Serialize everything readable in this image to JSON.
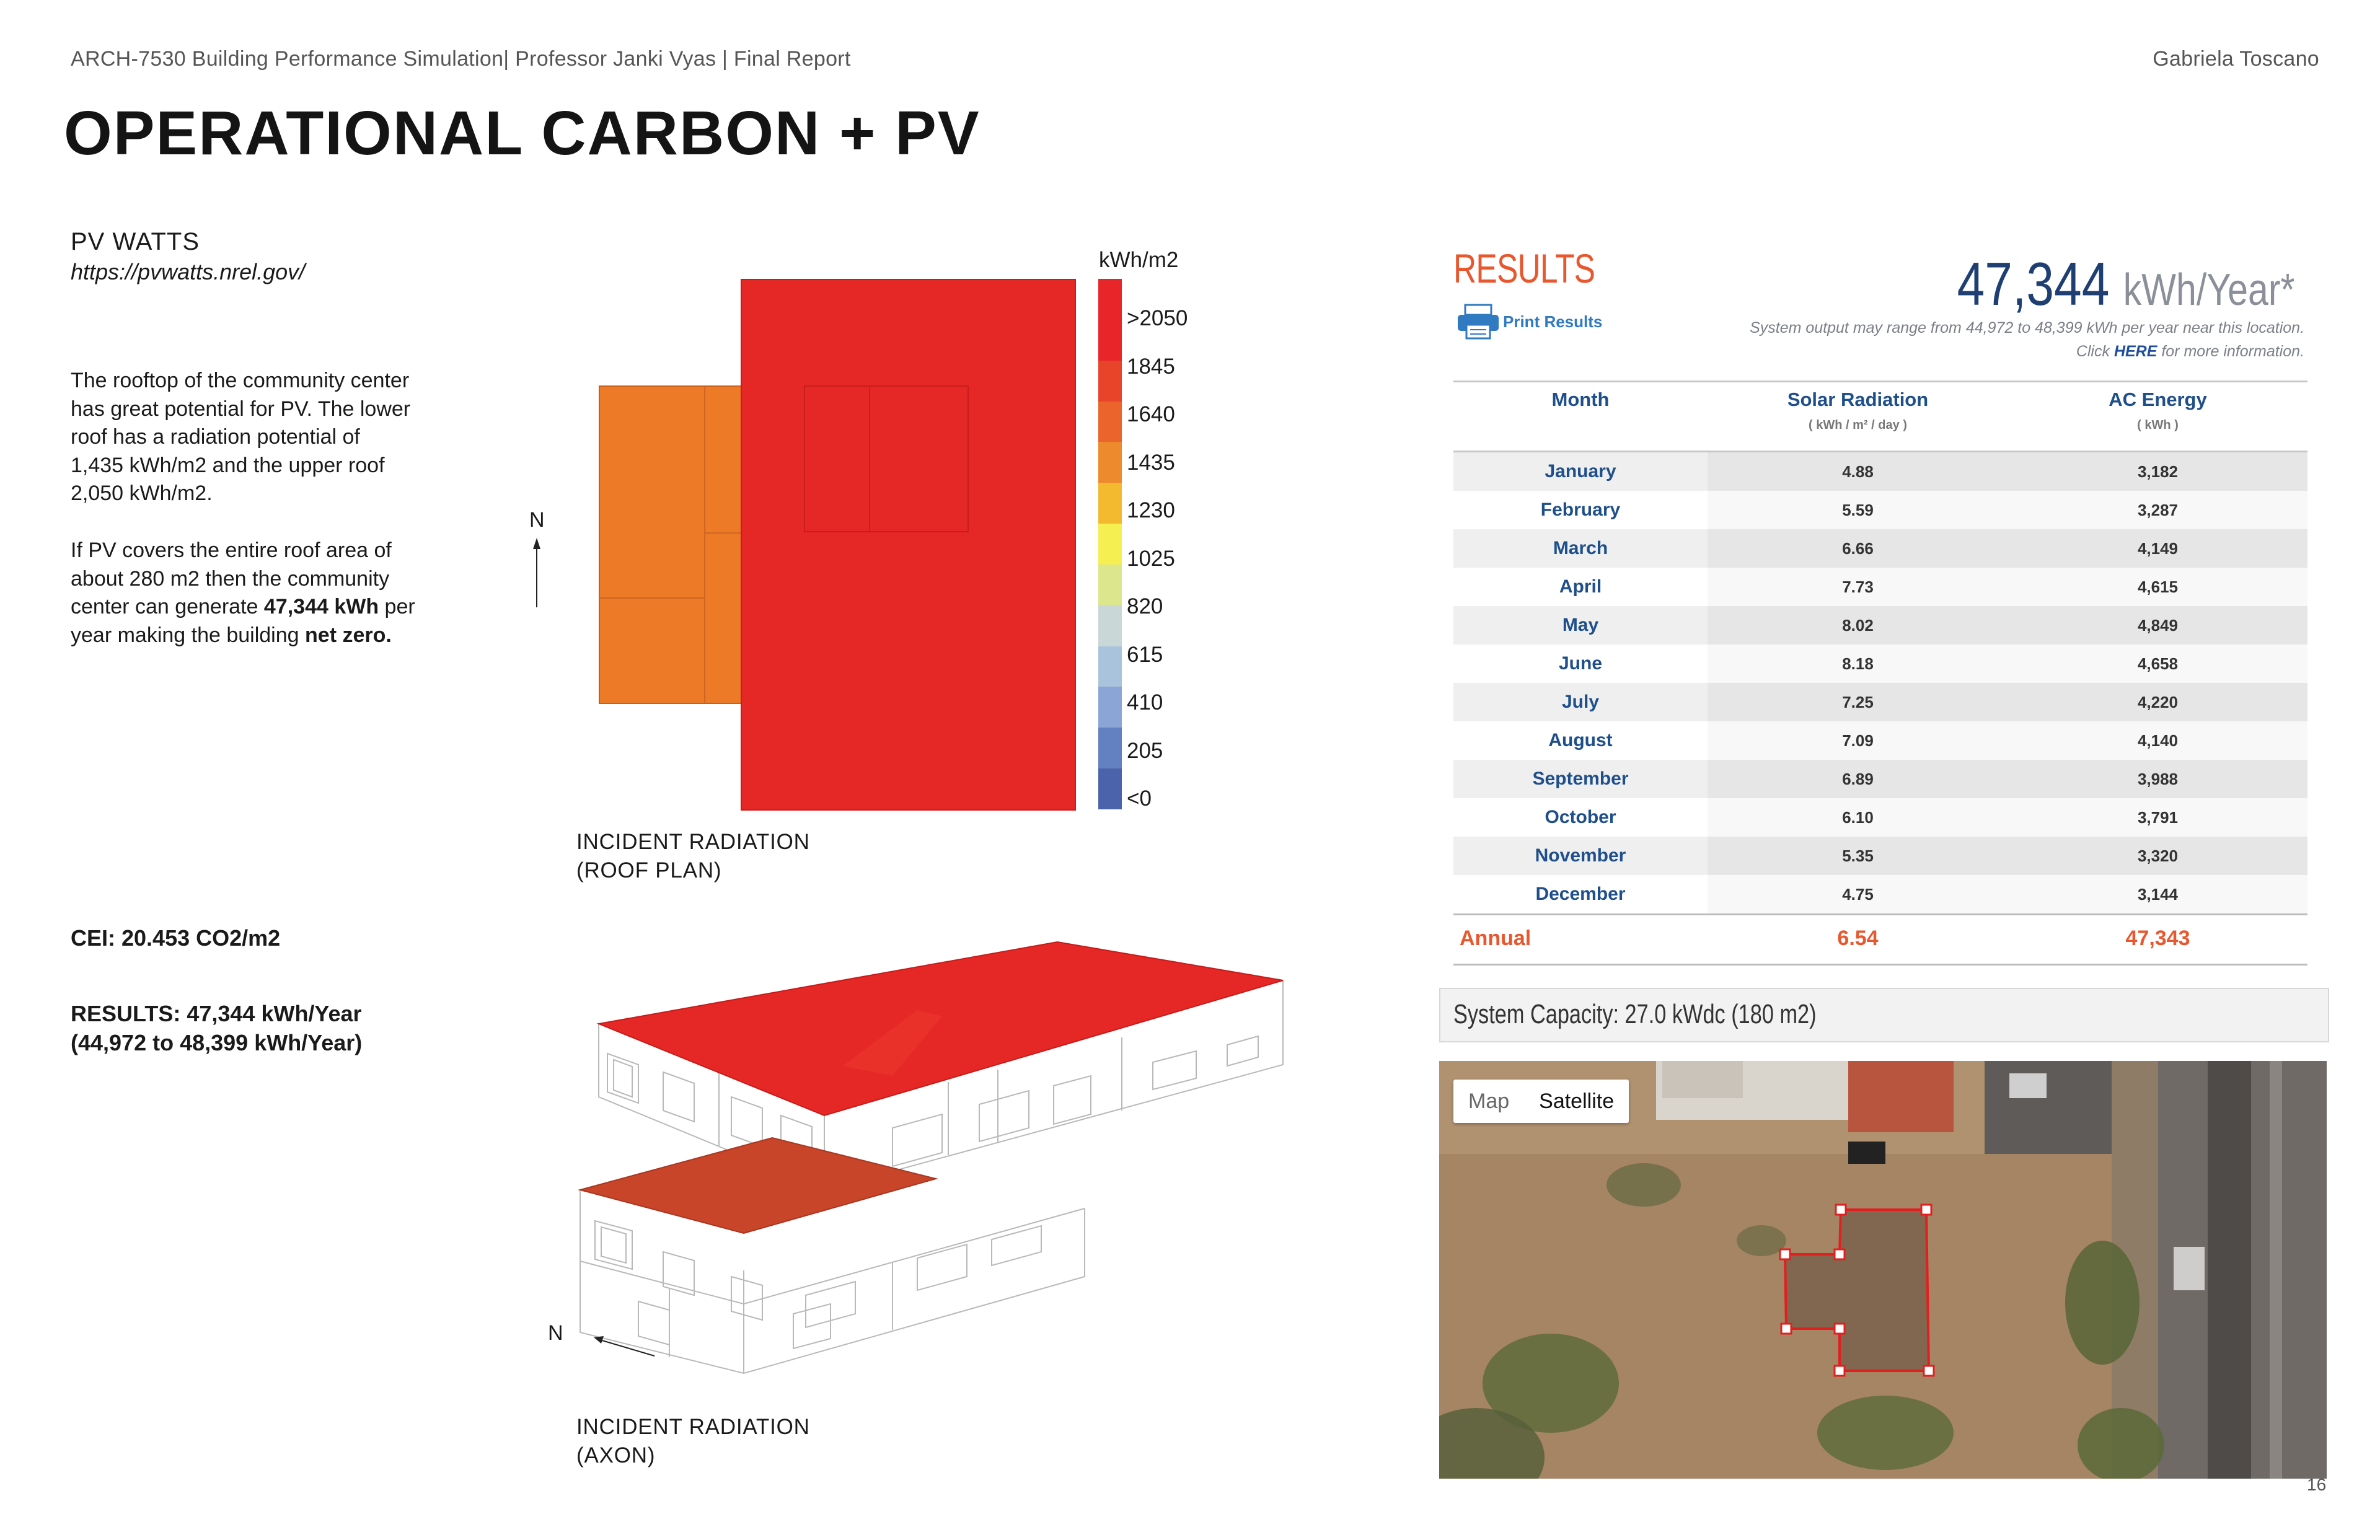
{
  "header": {
    "course": "ARCH-7530 Building Performance Simulation| Professor Janki Vyas | Final Report",
    "author": "Gabriela Toscano"
  },
  "title": "OPERATIONAL CARBON + PV",
  "intro": {
    "heading": "PV WATTS",
    "url": "https://pvwatts.nrel.gov/",
    "p1": "The rooftop of the community center has great potential for PV. The lower roof has a radiation potential of 1,435 kWh/m2 and the upper roof 2,050 kWh/m2.",
    "p2_a": "If PV covers the entire roof area of about 280 m2 then the community center can generate ",
    "p2_b": "47,344 kWh",
    "p2_c": " per year making the building ",
    "p2_d": "net zero."
  },
  "cei": "CEI: 20.453 CO2/m2",
  "results_summary": {
    "line1": "RESULTS:  47,344 kWh/Year",
    "line2": "(44,972 to 48,399 kWh/Year)"
  },
  "roof_plan": {
    "north_label": "N",
    "caption_line1": "INCIDENT RADIATION",
    "caption_line2": "(ROOF PLAN)"
  },
  "axon": {
    "north_label": "N",
    "caption_line1": "INCIDENT RADIATION",
    "caption_line2": "(AXON)"
  },
  "legend": {
    "unit": "kWh/m2",
    "labels": [
      ">2050",
      "1845",
      "1640",
      "1435",
      "1230",
      "1025",
      "820",
      "615",
      "410",
      "205",
      "<0"
    ],
    "colors": [
      "#e8262a",
      "#e8262a",
      "#e8442a",
      "#ea642c",
      "#ee8a2e",
      "#f3ba30",
      "#f5ef52",
      "#dce68c",
      "#c9d8d6",
      "#a9c3dd",
      "#8aa5d6",
      "#6381c0",
      "#4b63aa"
    ]
  },
  "pvwatts": {
    "results_title": "RESULTS",
    "print_label": "Print Results",
    "annual_output": "47,344",
    "annual_unit": "kWh/Year*",
    "range_note": "System output may range from 44,972 to 48,399 kWh per year near this location.",
    "click_a": "Click ",
    "click_here": "HERE",
    "click_b": " for more information.",
    "col_month": "Month",
    "col_solar": "Solar Radiation",
    "col_solar_unit": "( kWh / m² / day )",
    "col_ac": "AC Energy",
    "col_ac_unit": "( kWh )",
    "rows": [
      {
        "month": "January",
        "solar": "4.88",
        "ac": "3,182"
      },
      {
        "month": "February",
        "solar": "5.59",
        "ac": "3,287"
      },
      {
        "month": "March",
        "solar": "6.66",
        "ac": "4,149"
      },
      {
        "month": "April",
        "solar": "7.73",
        "ac": "4,615"
      },
      {
        "month": "May",
        "solar": "8.02",
        "ac": "4,849"
      },
      {
        "month": "June",
        "solar": "8.18",
        "ac": "4,658"
      },
      {
        "month": "July",
        "solar": "7.25",
        "ac": "4,220"
      },
      {
        "month": "August",
        "solar": "7.09",
        "ac": "4,140"
      },
      {
        "month": "September",
        "solar": "6.89",
        "ac": "3,988"
      },
      {
        "month": "October",
        "solar": "6.10",
        "ac": "3,791"
      },
      {
        "month": "November",
        "solar": "5.35",
        "ac": "3,320"
      },
      {
        "month": "December",
        "solar": "4.75",
        "ac": "3,144"
      }
    ],
    "annual_label": "Annual",
    "annual_solar": "6.54",
    "annual_ac": "47,343",
    "capacity": "System Capacity: 27.0 kWdc (180 m2)",
    "map_btn": "Map",
    "satellite_btn": "Satellite"
  },
  "page_number": "16"
}
